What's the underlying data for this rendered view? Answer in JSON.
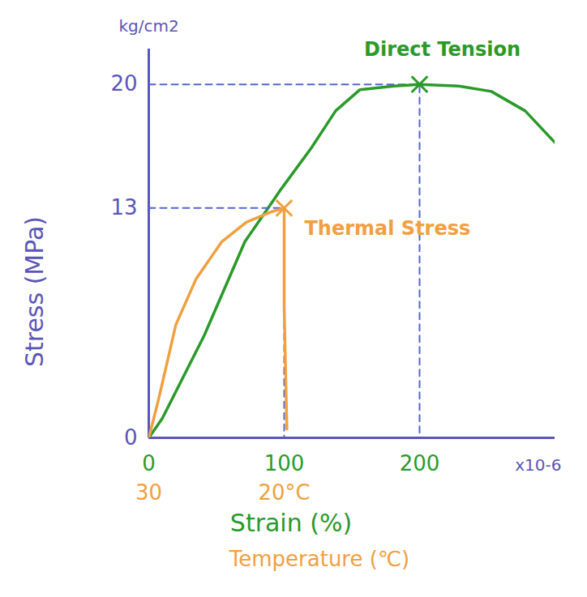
{
  "chart_data": {
    "type": "line",
    "ylabel": "Stress (MPa)",
    "yunit": "kg/cm2",
    "xlabel": "Strain (%)",
    "xunit": "x10-6",
    "x2label": "Temperature (℃)",
    "xlim": [
      0,
      300
    ],
    "xticks": [
      0,
      100,
      200
    ],
    "x2lim": [
      30,
      0
    ],
    "x2ticks": [
      30,
      {
        "value": 20,
        "label": "20°C"
      }
    ],
    "ylim": [
      0,
      22
    ],
    "yticks": [
      0,
      13,
      20
    ],
    "series": [
      {
        "name": "Direct Tension",
        "color": "#2a9a2a",
        "x": [
          0,
          10,
          41,
          71,
          98,
          120,
          138,
          156,
          181,
          200,
          229,
          253,
          278,
          300
        ],
        "values": [
          0,
          1.1,
          5.8,
          11.1,
          14.1,
          16.4,
          18.5,
          19.7,
          19.9,
          20,
          19.9,
          19.6,
          18.5,
          16.7
        ]
      },
      {
        "name": "Thermal Stress",
        "color": "#f0a040",
        "axis": "x2",
        "x": [
          30,
          29.3,
          28.0,
          26.5,
          24.6,
          22.8,
          20.9,
          20,
          20,
          19.8
        ],
        "values": [
          0,
          2.1,
          6.4,
          9.0,
          11.1,
          12.2,
          12.8,
          13,
          7.4,
          0.5
        ]
      }
    ]
  }
}
